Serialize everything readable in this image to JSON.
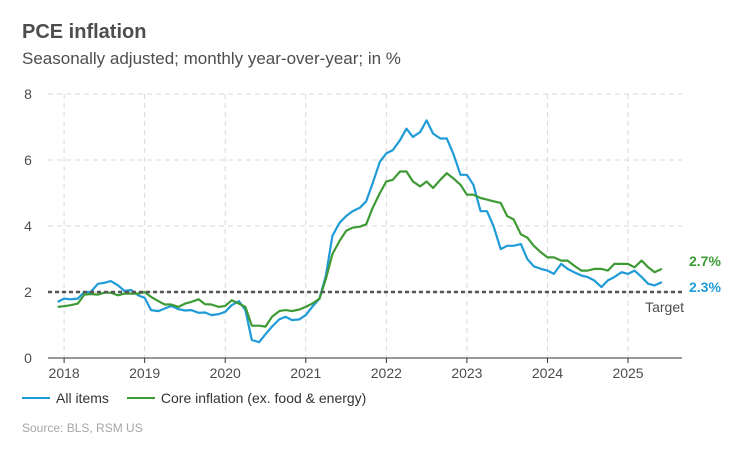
{
  "chart_data": {
    "type": "line",
    "title": "PCE inflation",
    "subtitle": "Seasonally adjusted; monthly year-over-year; in %",
    "ylim": [
      0,
      8
    ],
    "yticks": [
      0,
      2,
      4,
      6,
      8
    ],
    "xlim": [
      2017.8,
      2025.67
    ],
    "xticks": [
      2018,
      2019,
      2020,
      2021,
      2022,
      2023,
      2024,
      2025
    ],
    "grid": true,
    "target": {
      "value": 2,
      "label": "Target"
    },
    "series": [
      {
        "name": "All items",
        "color": "#1f9bd7",
        "end_label": "2.3%",
        "points": [
          [
            2017.92,
            1.7
          ],
          [
            2018.0,
            1.8
          ],
          [
            2018.08,
            1.78
          ],
          [
            2018.17,
            1.8
          ],
          [
            2018.25,
            2.0
          ],
          [
            2018.33,
            2.0
          ],
          [
            2018.42,
            2.25
          ],
          [
            2018.5,
            2.28
          ],
          [
            2018.58,
            2.33
          ],
          [
            2018.67,
            2.2
          ],
          [
            2018.75,
            2.03
          ],
          [
            2018.83,
            2.06
          ],
          [
            2018.92,
            1.9
          ],
          [
            2019.0,
            1.82
          ],
          [
            2019.08,
            1.45
          ],
          [
            2019.17,
            1.42
          ],
          [
            2019.25,
            1.5
          ],
          [
            2019.33,
            1.58
          ],
          [
            2019.42,
            1.48
          ],
          [
            2019.5,
            1.44
          ],
          [
            2019.58,
            1.45
          ],
          [
            2019.67,
            1.37
          ],
          [
            2019.75,
            1.38
          ],
          [
            2019.83,
            1.3
          ],
          [
            2019.92,
            1.33
          ],
          [
            2020.0,
            1.4
          ],
          [
            2020.08,
            1.6
          ],
          [
            2020.17,
            1.72
          ],
          [
            2020.25,
            1.45
          ],
          [
            2020.33,
            0.55
          ],
          [
            2020.42,
            0.48
          ],
          [
            2020.5,
            0.72
          ],
          [
            2020.58,
            0.95
          ],
          [
            2020.67,
            1.17
          ],
          [
            2020.75,
            1.25
          ],
          [
            2020.83,
            1.15
          ],
          [
            2020.92,
            1.17
          ],
          [
            2021.0,
            1.3
          ],
          [
            2021.08,
            1.55
          ],
          [
            2021.17,
            1.8
          ],
          [
            2021.25,
            2.5
          ],
          [
            2021.33,
            3.7
          ],
          [
            2021.42,
            4.1
          ],
          [
            2021.5,
            4.3
          ],
          [
            2021.58,
            4.45
          ],
          [
            2021.67,
            4.55
          ],
          [
            2021.75,
            4.75
          ],
          [
            2021.83,
            5.3
          ],
          [
            2021.92,
            5.95
          ],
          [
            2022.0,
            6.2
          ],
          [
            2022.08,
            6.3
          ],
          [
            2022.17,
            6.6
          ],
          [
            2022.25,
            6.95
          ],
          [
            2022.33,
            6.7
          ],
          [
            2022.42,
            6.85
          ],
          [
            2022.5,
            7.2
          ],
          [
            2022.58,
            6.8
          ],
          [
            2022.67,
            6.65
          ],
          [
            2022.75,
            6.65
          ],
          [
            2022.83,
            6.2
          ],
          [
            2022.92,
            5.55
          ],
          [
            2023.0,
            5.55
          ],
          [
            2023.08,
            5.25
          ],
          [
            2023.17,
            4.45
          ],
          [
            2023.25,
            4.45
          ],
          [
            2023.33,
            4.0
          ],
          [
            2023.42,
            3.3
          ],
          [
            2023.5,
            3.4
          ],
          [
            2023.58,
            3.4
          ],
          [
            2023.67,
            3.45
          ],
          [
            2023.75,
            3.0
          ],
          [
            2023.83,
            2.78
          ],
          [
            2023.92,
            2.7
          ],
          [
            2024.0,
            2.65
          ],
          [
            2024.08,
            2.55
          ],
          [
            2024.17,
            2.85
          ],
          [
            2024.25,
            2.7
          ],
          [
            2024.33,
            2.6
          ],
          [
            2024.42,
            2.5
          ],
          [
            2024.5,
            2.45
          ],
          [
            2024.58,
            2.35
          ],
          [
            2024.67,
            2.15
          ],
          [
            2024.75,
            2.35
          ],
          [
            2024.83,
            2.45
          ],
          [
            2024.92,
            2.6
          ],
          [
            2025.0,
            2.55
          ],
          [
            2025.08,
            2.65
          ],
          [
            2025.17,
            2.45
          ],
          [
            2025.25,
            2.25
          ],
          [
            2025.33,
            2.2
          ],
          [
            2025.42,
            2.3
          ]
        ]
      },
      {
        "name": "Core inflation (ex. food & energy)",
        "color": "#3d9a35",
        "end_label": "2.7%",
        "points": [
          [
            2017.92,
            1.55
          ],
          [
            2018.0,
            1.57
          ],
          [
            2018.08,
            1.6
          ],
          [
            2018.17,
            1.65
          ],
          [
            2018.25,
            1.92
          ],
          [
            2018.33,
            1.94
          ],
          [
            2018.42,
            1.92
          ],
          [
            2018.5,
            1.98
          ],
          [
            2018.58,
            1.98
          ],
          [
            2018.67,
            1.9
          ],
          [
            2018.75,
            1.95
          ],
          [
            2018.83,
            1.95
          ],
          [
            2018.92,
            1.95
          ],
          [
            2019.0,
            2.0
          ],
          [
            2019.08,
            1.85
          ],
          [
            2019.17,
            1.72
          ],
          [
            2019.25,
            1.62
          ],
          [
            2019.33,
            1.62
          ],
          [
            2019.42,
            1.55
          ],
          [
            2019.5,
            1.65
          ],
          [
            2019.58,
            1.7
          ],
          [
            2019.67,
            1.78
          ],
          [
            2019.75,
            1.63
          ],
          [
            2019.83,
            1.62
          ],
          [
            2019.92,
            1.55
          ],
          [
            2020.0,
            1.58
          ],
          [
            2020.08,
            1.75
          ],
          [
            2020.17,
            1.65
          ],
          [
            2020.25,
            1.55
          ],
          [
            2020.33,
            0.98
          ],
          [
            2020.42,
            0.98
          ],
          [
            2020.5,
            0.95
          ],
          [
            2020.58,
            1.25
          ],
          [
            2020.67,
            1.42
          ],
          [
            2020.75,
            1.45
          ],
          [
            2020.83,
            1.42
          ],
          [
            2020.92,
            1.47
          ],
          [
            2021.0,
            1.55
          ],
          [
            2021.08,
            1.65
          ],
          [
            2021.17,
            1.8
          ],
          [
            2021.25,
            2.4
          ],
          [
            2021.33,
            3.15
          ],
          [
            2021.42,
            3.55
          ],
          [
            2021.5,
            3.85
          ],
          [
            2021.58,
            3.95
          ],
          [
            2021.67,
            3.98
          ],
          [
            2021.75,
            4.05
          ],
          [
            2021.83,
            4.55
          ],
          [
            2021.92,
            5.0
          ],
          [
            2022.0,
            5.35
          ],
          [
            2022.08,
            5.4
          ],
          [
            2022.17,
            5.65
          ],
          [
            2022.25,
            5.65
          ],
          [
            2022.33,
            5.35
          ],
          [
            2022.42,
            5.2
          ],
          [
            2022.5,
            5.35
          ],
          [
            2022.58,
            5.15
          ],
          [
            2022.67,
            5.4
          ],
          [
            2022.75,
            5.6
          ],
          [
            2022.83,
            5.45
          ],
          [
            2022.92,
            5.25
          ],
          [
            2023.0,
            4.95
          ],
          [
            2023.08,
            4.95
          ],
          [
            2023.17,
            4.85
          ],
          [
            2023.25,
            4.8
          ],
          [
            2023.33,
            4.75
          ],
          [
            2023.42,
            4.7
          ],
          [
            2023.5,
            4.3
          ],
          [
            2023.58,
            4.2
          ],
          [
            2023.67,
            3.75
          ],
          [
            2023.75,
            3.65
          ],
          [
            2023.83,
            3.4
          ],
          [
            2023.92,
            3.2
          ],
          [
            2024.0,
            3.05
          ],
          [
            2024.08,
            3.05
          ],
          [
            2024.17,
            2.95
          ],
          [
            2024.25,
            2.95
          ],
          [
            2024.33,
            2.8
          ],
          [
            2024.42,
            2.65
          ],
          [
            2024.5,
            2.65
          ],
          [
            2024.58,
            2.7
          ],
          [
            2024.67,
            2.7
          ],
          [
            2024.75,
            2.65
          ],
          [
            2024.83,
            2.85
          ],
          [
            2024.92,
            2.85
          ],
          [
            2025.0,
            2.85
          ],
          [
            2025.08,
            2.75
          ],
          [
            2025.17,
            2.95
          ],
          [
            2025.25,
            2.75
          ],
          [
            2025.33,
            2.6
          ],
          [
            2025.42,
            2.7
          ]
        ]
      }
    ],
    "source": "Source: BLS, RSM US"
  }
}
